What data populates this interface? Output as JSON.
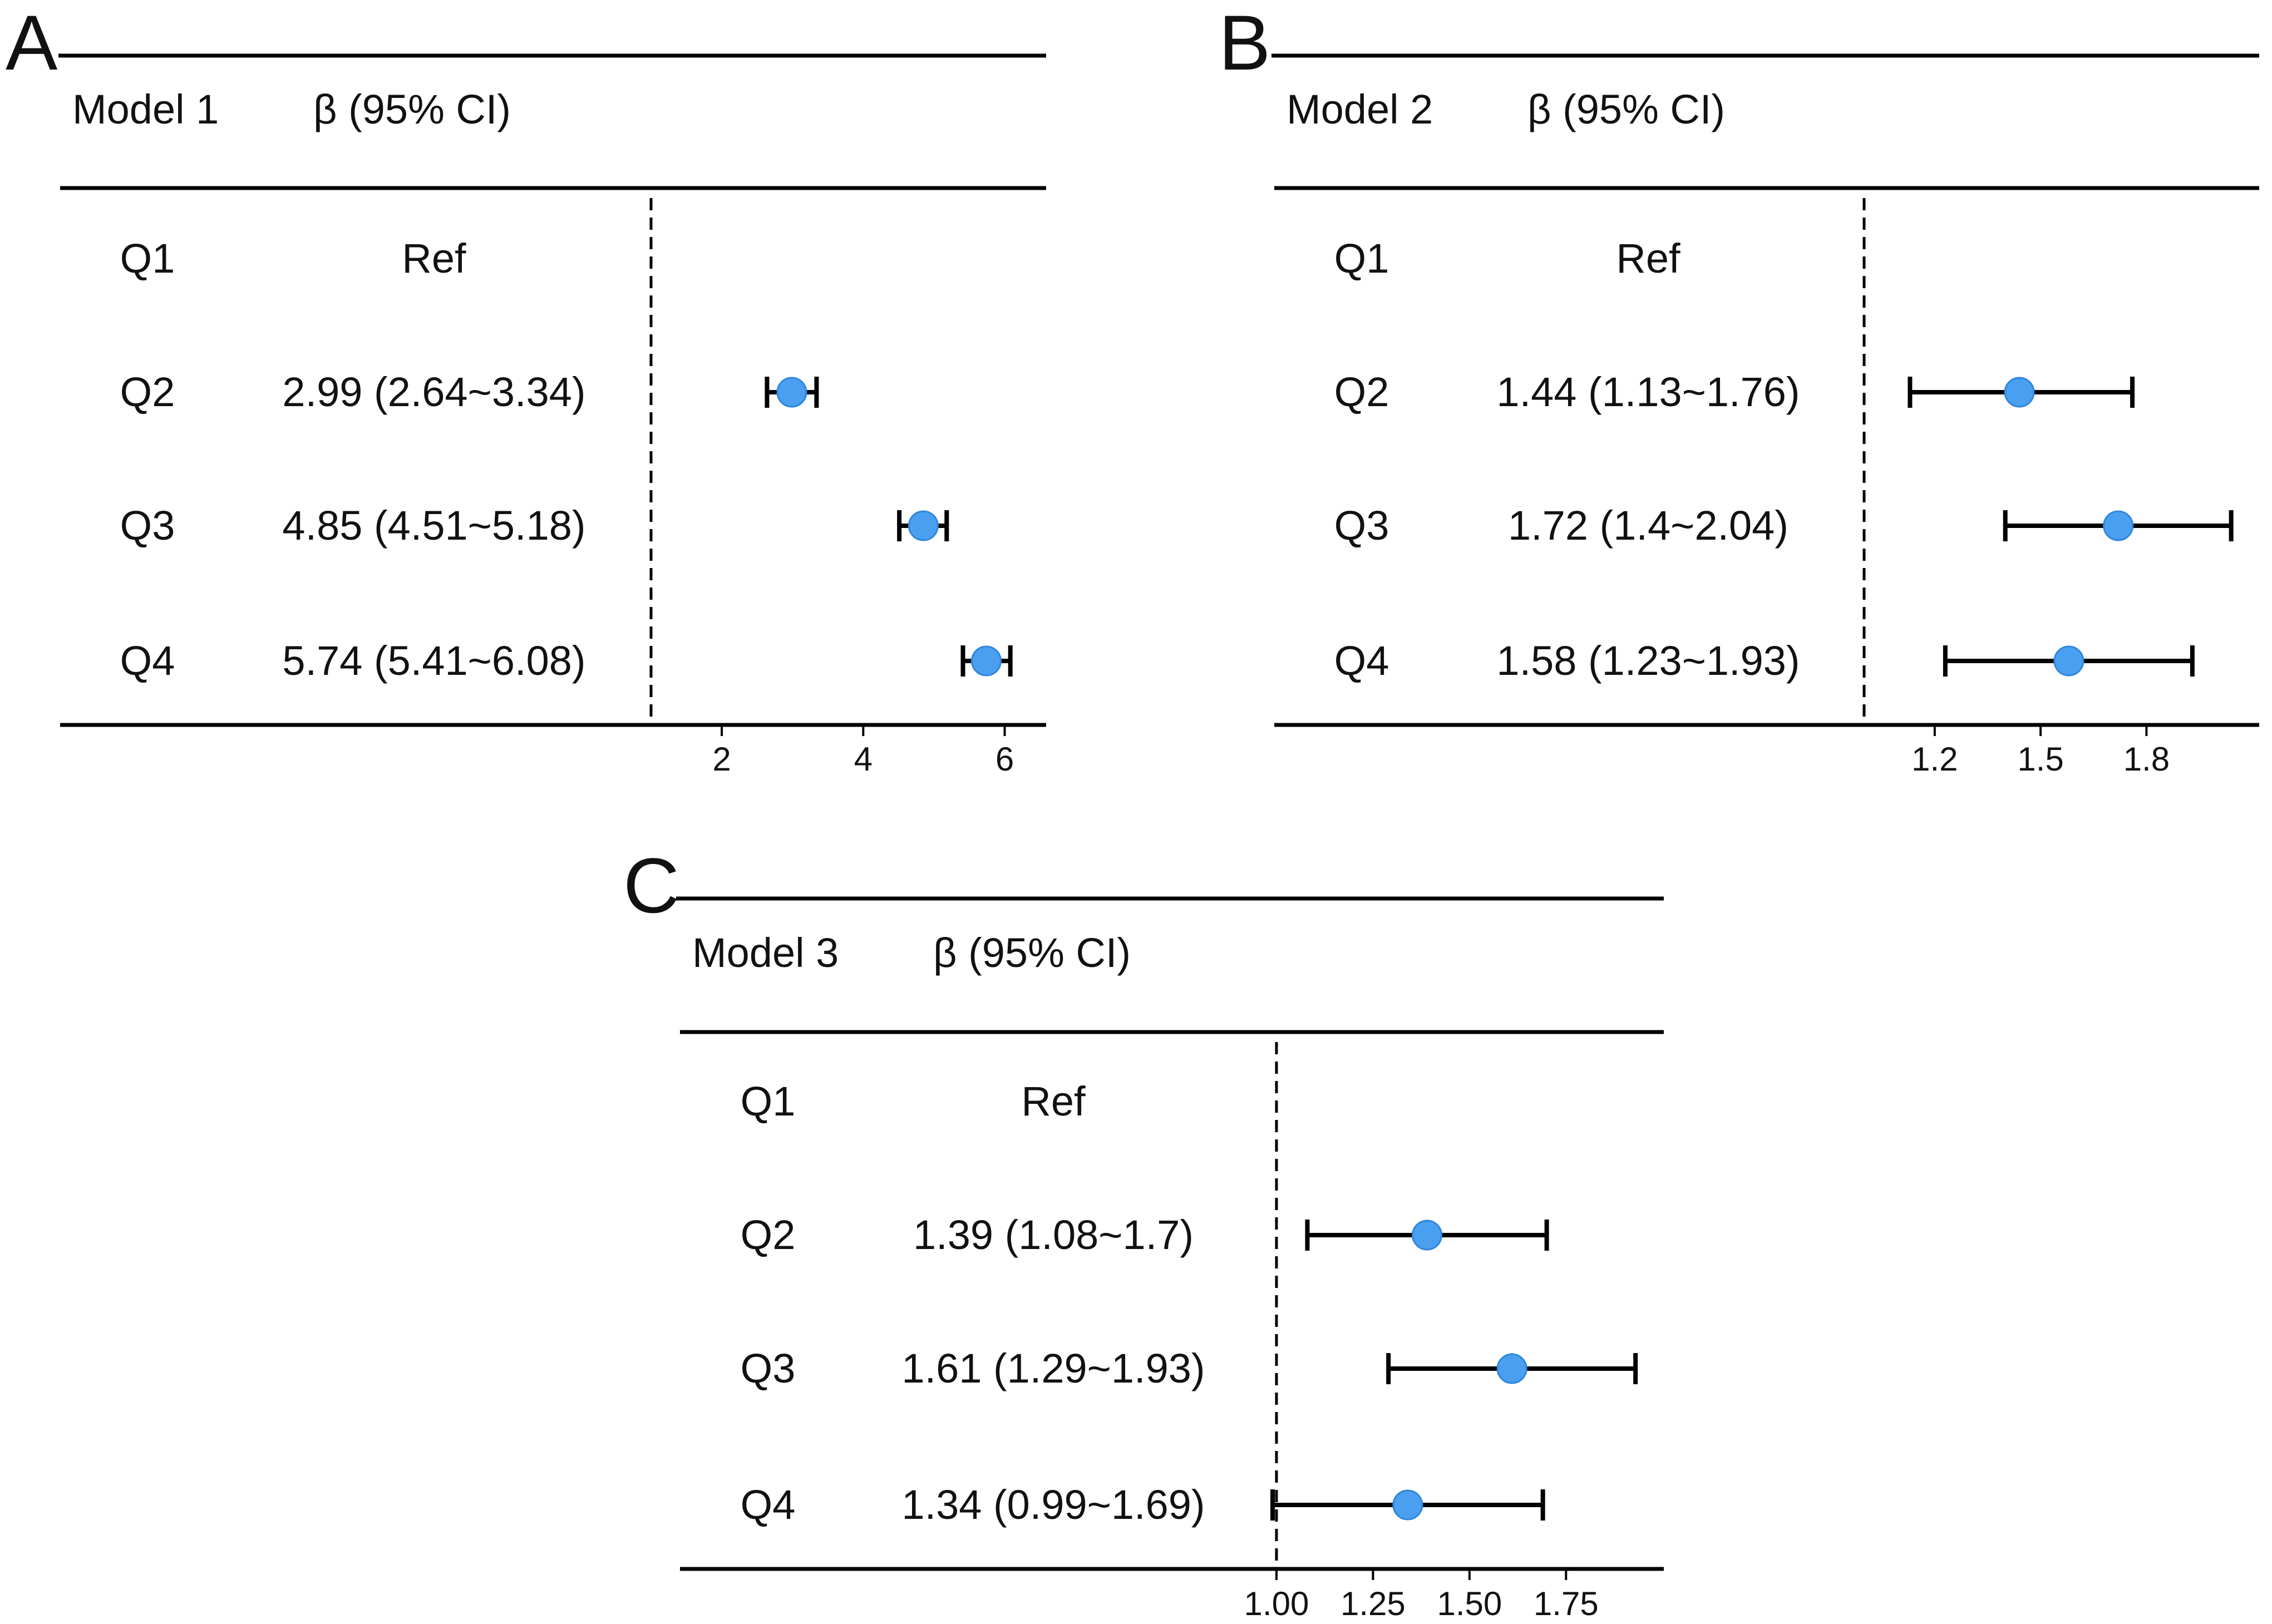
{
  "chart_data": [
    {
      "type": "forest",
      "panel": "A",
      "model_label": "Model 1",
      "estimate_label": "β (95% CI)",
      "rows": [
        {
          "label": "Q1",
          "text": "Ref"
        },
        {
          "label": "Q2",
          "text": "2.99 (2.64~3.34)",
          "beta": 2.99,
          "lower": 2.64,
          "upper": 3.34
        },
        {
          "label": "Q3",
          "text": "4.85 (4.51~5.18)",
          "beta": 4.85,
          "lower": 4.51,
          "upper": 5.18
        },
        {
          "label": "Q4",
          "text": "5.74 (5.41~6.08)",
          "beta": 5.74,
          "lower": 5.41,
          "upper": 6.08
        }
      ],
      "reference_line": 1,
      "xlim": [
        1,
        6.35
      ],
      "xticks": [
        "2",
        "4",
        "6"
      ],
      "xtick_values": [
        2,
        4,
        6
      ],
      "point_color": "#4a9ff0"
    },
    {
      "type": "forest",
      "panel": "B",
      "model_label": "Model 2",
      "estimate_label": "β (95% CI)",
      "rows": [
        {
          "label": "Q1",
          "text": "Ref"
        },
        {
          "label": "Q2",
          "text": "1.44 (1.13~1.76)",
          "beta": 1.44,
          "lower": 1.13,
          "upper": 1.76
        },
        {
          "label": "Q3",
          "text": "1.72 (1.4~2.04)",
          "beta": 1.72,
          "lower": 1.4,
          "upper": 2.04
        },
        {
          "label": "Q4",
          "text": "1.58 (1.23~1.93)",
          "beta": 1.58,
          "lower": 1.23,
          "upper": 1.93
        }
      ],
      "reference_line": 1,
      "xlim": [
        1,
        2.08
      ],
      "xticks": [
        "1.2",
        "1.5",
        "1.8"
      ],
      "xtick_values": [
        1.2,
        1.5,
        1.8
      ],
      "point_color": "#4a9ff0"
    },
    {
      "type": "forest",
      "panel": "C",
      "model_label": "Model 3",
      "estimate_label": "β (95% CI)",
      "rows": [
        {
          "label": "Q1",
          "text": "Ref"
        },
        {
          "label": "Q2",
          "text": "1.39 (1.08~1.7)",
          "beta": 1.39,
          "lower": 1.08,
          "upper": 1.7
        },
        {
          "label": "Q3",
          "text": "1.61 (1.29~1.93)",
          "beta": 1.61,
          "lower": 1.29,
          "upper": 1.93
        },
        {
          "label": "Q4",
          "text": "1.34 (0.99~1.69)",
          "beta": 1.34,
          "lower": 0.99,
          "upper": 1.69
        }
      ],
      "reference_line": 1,
      "xlim": [
        0.99,
        1.96
      ],
      "xticks": [
        "1.00",
        "1.25",
        "1.50",
        "1.75"
      ],
      "xtick_values": [
        1.0,
        1.25,
        1.5,
        1.75
      ],
      "point_color": "#4a9ff0"
    }
  ]
}
